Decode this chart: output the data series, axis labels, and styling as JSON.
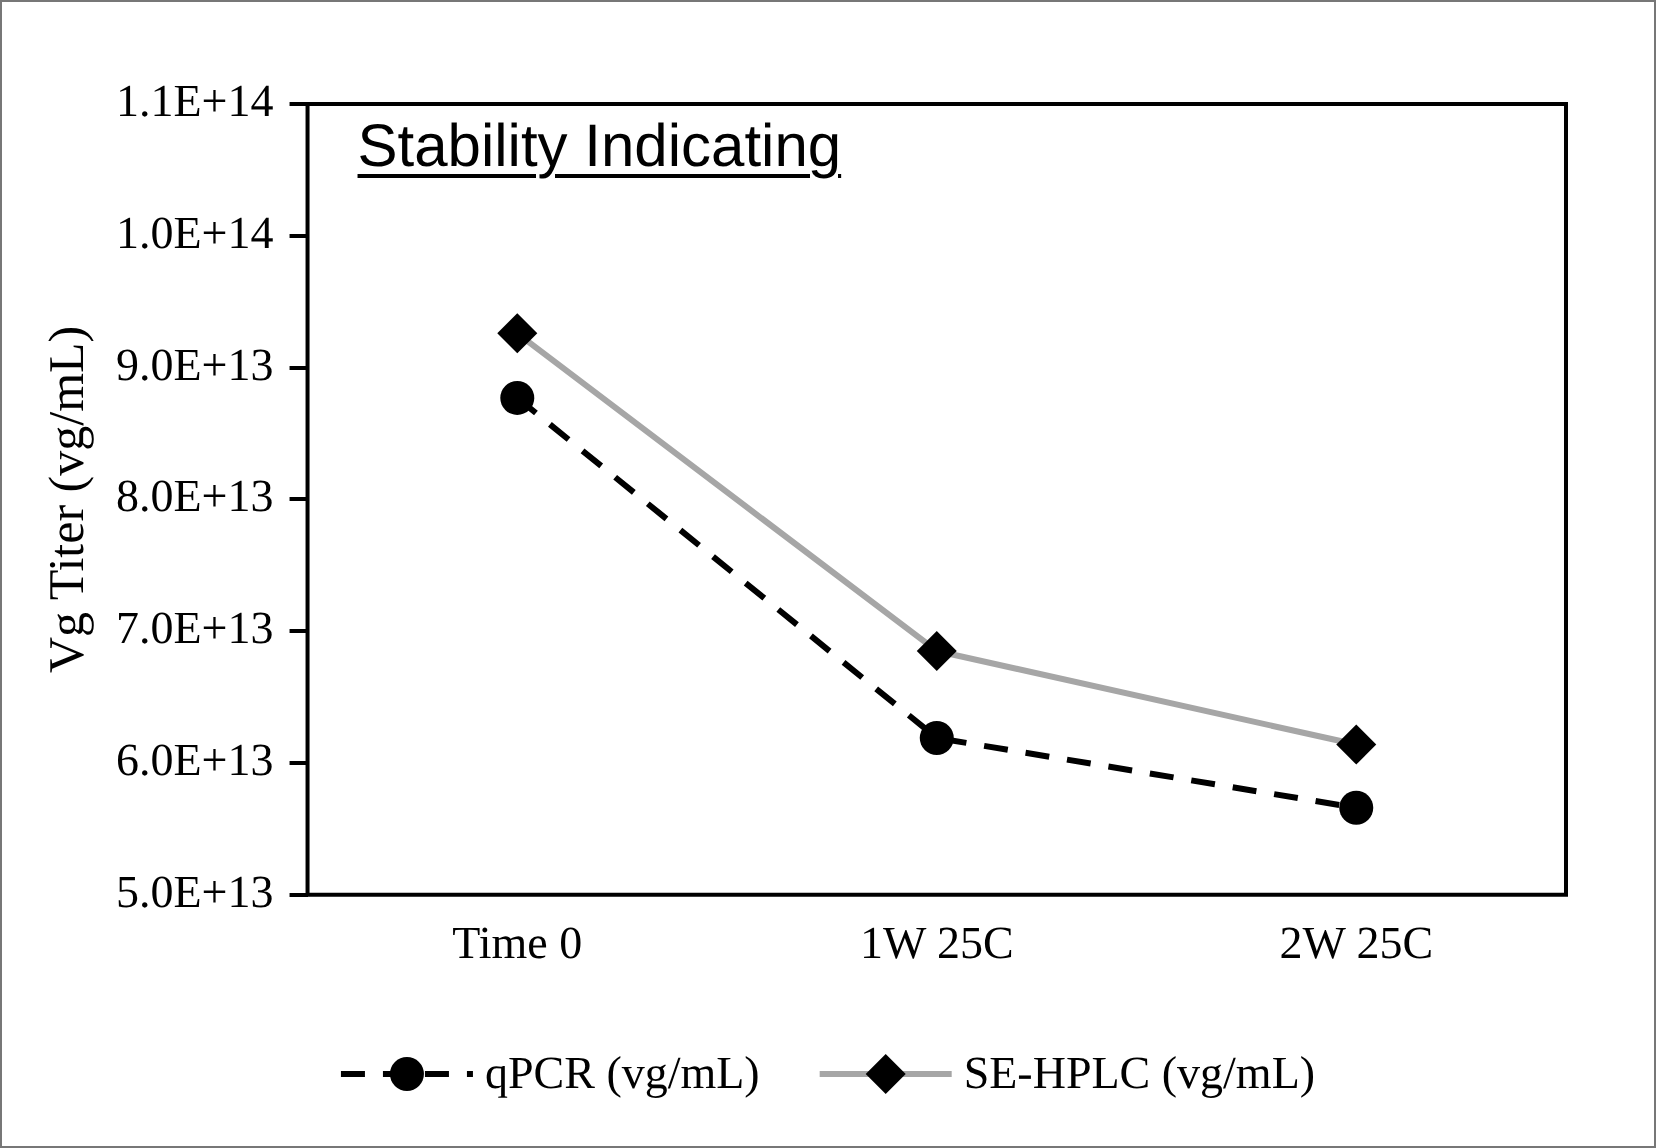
{
  "chart_data": {
    "type": "line",
    "title": "Stability Indicating",
    "ylabel": "Vg Titer (vg/mL)",
    "categories": [
      "Time 0",
      "1W 25C",
      "2W 25C"
    ],
    "series": [
      {
        "name": "qPCR (vg/mL)",
        "color": "#000000",
        "values": [
          87700000000000.0,
          61900000000000.0,
          56600000000000.0
        ],
        "marker": "circle",
        "line_style": "dashed"
      },
      {
        "name": "SE-HPLC (vg/mL)",
        "color": "#a6a6a6",
        "values": [
          92600000000000.0,
          68500000000000.0,
          61400000000000.0
        ],
        "marker": "diamond",
        "line_style": "solid"
      }
    ],
    "ylim": [
      50000000000000.0,
      110000000000000.0
    ],
    "yticks": [
      {
        "value": 50000000000000.0,
        "label": "5.0E+13"
      },
      {
        "value": 60000000000000.0,
        "label": "6.0E+13"
      },
      {
        "value": 70000000000000.0,
        "label": "7.0E+13"
      },
      {
        "value": 80000000000000.0,
        "label": "8.0E+13"
      },
      {
        "value": 90000000000000.0,
        "label": "9.0E+13"
      },
      {
        "value": 100000000000000.0,
        "label": "1.0E+14"
      },
      {
        "value": 110000000000000.0,
        "label": "1.1E+14"
      }
    ],
    "grid": false,
    "legend": "bottom"
  }
}
